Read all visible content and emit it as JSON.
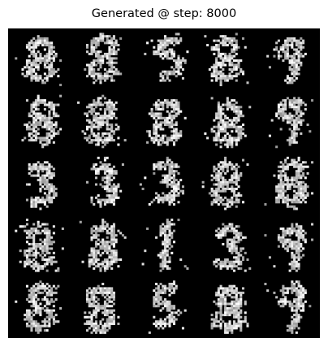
{
  "title": "Generated @ step: 8000",
  "grid": {
    "rows": 5,
    "cols": 5,
    "background_color": "#000000",
    "digit_color": "#ffffff",
    "shapes": [
      [
        "8",
        "8",
        "5",
        "8",
        "9"
      ],
      [
        "8",
        "8",
        "8",
        "8",
        "9"
      ],
      [
        "3",
        "3",
        "3",
        "8",
        "8"
      ],
      [
        "8",
        "8",
        "1",
        "3",
        "9"
      ],
      [
        "8",
        "8",
        "5",
        "8",
        "9"
      ]
    ]
  }
}
